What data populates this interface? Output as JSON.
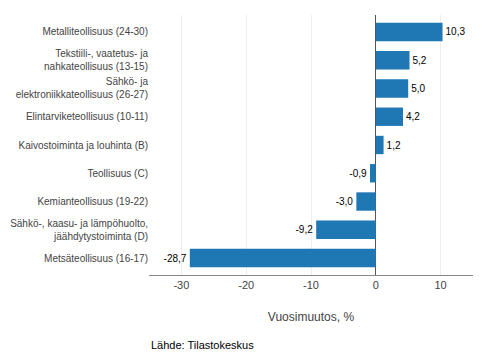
{
  "chart_data": {
    "type": "bar",
    "orientation": "horizontal",
    "categories": [
      "Metsäteollisuus (16-17)",
      "Sähkö-, kaasu- ja lämpöhuolto,\njäähdytystoiminta (D)",
      "Kemianteollisuus (19-22)",
      "Teollisuus (C)",
      "Kaivostoiminta ja louhinta (B)",
      "Elintarviketeollisuus (10-11)",
      "Sähkö- ja\nelektroniikkateollisuus (26-27)",
      "Tekstiili-, vaatetus- ja\nnahkateollisuus (13-15)",
      "Metalliteollisuus (24-30)"
    ],
    "values": [
      -28.7,
      -9.2,
      -3.0,
      -0.9,
      1.2,
      4.2,
      5.0,
      5.2,
      10.3
    ],
    "value_labels": [
      "-28,7",
      "-9,2",
      "-3,0",
      "-0,9",
      "1,2",
      "4,2",
      "5,0",
      "5,2",
      "10,3"
    ],
    "data_labels": true,
    "color": "#1F77B4",
    "xlabel": "Vuosimuutos, %",
    "xlim": [
      -35,
      15
    ],
    "xticks": [
      -30,
      -20,
      -10,
      0,
      10
    ],
    "grid": true,
    "annotations": [
      "Lähde: Tilastokeskus"
    ]
  }
}
